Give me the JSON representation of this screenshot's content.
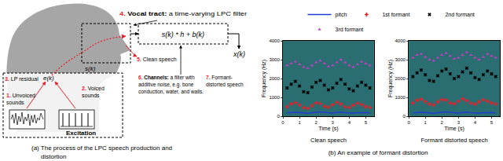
{
  "diagram": {
    "items": [
      {
        "num": "1.",
        "head": "",
        "lines": [
          "Unvoiced",
          "sounds"
        ]
      },
      {
        "num": "2.",
        "head": "",
        "lines": [
          "Voiced",
          "sounds"
        ]
      },
      {
        "num": "3.",
        "head": "",
        "lines": [
          "LP residual"
        ]
      },
      {
        "num": "4.",
        "head": "Vocal tract:",
        "lines": [
          " a time-varying LPC filter"
        ]
      },
      {
        "num": "5.",
        "head": "",
        "lines": [
          "Clean speech"
        ]
      },
      {
        "num": "6.",
        "head": "Channels:",
        "lines": [
          " a filter with",
          "additive noise, e.g. bone",
          "conduction, water, and walls."
        ]
      },
      {
        "num": "7.",
        "head": "",
        "lines": [
          "Formant-",
          "distorted speech"
        ]
      }
    ],
    "symbols": {
      "excitation_signal": "e(k)",
      "clean_signal": "s(k)",
      "formula": "s(k) * h + b(k)",
      "output": "x(k)"
    },
    "excitation_label": "Excitation",
    "caption": [
      "(a) The process of the LPC speech production and",
      "distortion"
    ]
  },
  "caption_b": "(b) An example of formant distortion",
  "chart_data": [
    {
      "type": "line",
      "title": "Clean speech",
      "x_label": "Time (s)",
      "y_label": "Frequency (Hz)",
      "x": [
        0.25,
        0.5,
        0.75,
        1,
        1.25,
        1.5,
        1.75,
        2,
        2.25,
        2.5,
        2.75,
        3,
        3.25,
        3.5,
        3.75,
        4,
        4.25,
        4.5,
        4.75,
        5,
        5.25
      ],
      "xlim": [
        0,
        5.5
      ],
      "xticks": [
        0,
        1,
        2,
        3,
        4,
        5
      ],
      "ylim": [
        0,
        4000
      ],
      "yticks": [
        0,
        1000,
        2000,
        3000,
        4000
      ],
      "grid": false,
      "legend": "top",
      "series": [
        {
          "name": "pitch",
          "type": "line",
          "color": "#1f3fd0",
          "marker": "none",
          "line_style": "solid",
          "values": [
            180,
            200,
            210,
            195,
            170,
            160,
            190,
            220,
            230,
            210,
            180,
            170,
            200,
            215,
            190,
            175,
            165,
            185,
            205,
            195,
            180
          ]
        },
        {
          "name": "1st formant",
          "type": "scatter",
          "color": "#e8202a",
          "marker": "plus",
          "line_style": "none",
          "values": [
            500,
            650,
            720,
            600,
            450,
            420,
            560,
            700,
            680,
            520,
            480,
            610,
            740,
            650,
            500,
            460,
            580,
            690,
            620,
            510,
            470
          ]
        },
        {
          "name": "2nd formant",
          "type": "scatter",
          "color": "#000000",
          "marker": "x",
          "line_style": "none",
          "values": [
            1500,
            1700,
            1850,
            1600,
            1300,
            1250,
            1550,
            1800,
            1900,
            1650,
            1400,
            1500,
            1750,
            1950,
            1700,
            1450,
            1350,
            1600,
            1800,
            1650,
            1500
          ]
        },
        {
          "name": "3rd formant",
          "type": "scatter",
          "color": "#c040c0",
          "marker": "triangle",
          "line_style": "none",
          "values": [
            2700,
            2800,
            2900,
            2750,
            2600,
            2550,
            2700,
            2850,
            2950,
            2800,
            2650,
            2700,
            2850,
            3000,
            2850,
            2700,
            2600,
            2750,
            2900,
            2800,
            2700
          ]
        }
      ]
    },
    {
      "type": "line",
      "title": "Formant distorted speech",
      "x_label": "Time (s)",
      "y_label": "Frequency (Hz)",
      "x": [
        0.25,
        0.5,
        0.75,
        1,
        1.25,
        1.5,
        1.75,
        2,
        2.25,
        2.5,
        2.75,
        3,
        3.25,
        3.5,
        3.75,
        4,
        4.25,
        4.5,
        4.75,
        5,
        5.25
      ],
      "xlim": [
        0,
        5.5
      ],
      "xticks": [
        0,
        1,
        2,
        3,
        4,
        5
      ],
      "ylim": [
        0,
        4000
      ],
      "yticks": [
        0,
        1000,
        2000,
        3000,
        4000
      ],
      "grid": false,
      "legend": "top",
      "series": [
        {
          "name": "pitch",
          "type": "line",
          "color": "#1f3fd0",
          "marker": "none",
          "line_style": "solid",
          "values": [
            180,
            200,
            210,
            195,
            170,
            160,
            190,
            220,
            230,
            210,
            180,
            170,
            200,
            215,
            190,
            175,
            165,
            185,
            205,
            195,
            180
          ]
        },
        {
          "name": "1st formant",
          "type": "scatter",
          "color": "#e8202a",
          "marker": "plus",
          "line_style": "none",
          "values": [
            700,
            850,
            900,
            780,
            650,
            600,
            760,
            880,
            860,
            700,
            660,
            800,
            920,
            830,
            690,
            640,
            760,
            870,
            800,
            700,
            650
          ]
        },
        {
          "name": "2nd formant",
          "type": "scatter",
          "color": "#000000",
          "marker": "x",
          "line_style": "none",
          "values": [
            2100,
            2300,
            2450,
            2200,
            1900,
            1850,
            2150,
            2400,
            2500,
            2250,
            2000,
            2100,
            2350,
            2550,
            2300,
            2050,
            1950,
            2200,
            2400,
            2250,
            2100
          ]
        },
        {
          "name": "3rd formant",
          "type": "scatter",
          "color": "#c040c0",
          "marker": "triangle",
          "line_style": "none",
          "values": [
            3100,
            3250,
            3300,
            3150,
            3000,
            2950,
            3100,
            3250,
            3350,
            3200,
            3050,
            3100,
            3250,
            3400,
            3250,
            3100,
            3000,
            3150,
            3300,
            3200,
            3100
          ]
        }
      ]
    }
  ]
}
